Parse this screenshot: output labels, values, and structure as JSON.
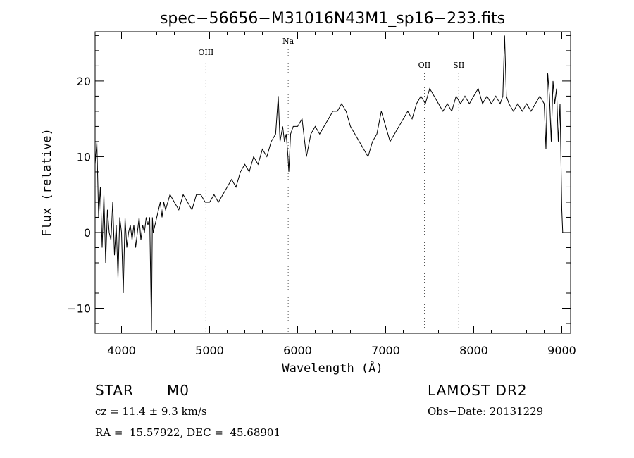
{
  "chart_data": {
    "type": "line",
    "title": "spec−56656−M31016N43M1_sp16−233.fits",
    "xlabel": "Wavelength (Å)",
    "ylabel": "Flux (relative)",
    "xlim": [
      3700,
      9100
    ],
    "ylim": [
      -13.3,
      26.5
    ],
    "xticks": [
      4000,
      5000,
      6000,
      7000,
      8000,
      9000
    ],
    "yticks": [
      -10,
      0,
      10,
      20
    ],
    "xtick_labels": [
      "4000",
      "5000",
      "6000",
      "7000",
      "8000",
      "9000"
    ],
    "ytick_labels": [
      "−10",
      "0",
      "10",
      "20"
    ],
    "grid": false,
    "line_color": "#000000",
    "series": [
      {
        "x": [
          3700,
          3720,
          3740,
          3760,
          3780,
          3800,
          3820,
          3840,
          3860,
          3880,
          3900,
          3920,
          3940,
          3960,
          3980,
          4000,
          4020,
          4040,
          4060,
          4080,
          4100,
          4120,
          4140,
          4160,
          4180,
          4200,
          4220,
          4240,
          4260,
          4280,
          4300,
          4320,
          4340,
          4350,
          4360,
          4380,
          4400,
          4420,
          4440,
          4460,
          4480,
          4500,
          4550,
          4600,
          4650,
          4700,
          4750,
          4800,
          4850,
          4900,
          4950,
          5000,
          5050,
          5100,
          5150,
          5200,
          5250,
          5300,
          5350,
          5400,
          5450,
          5500,
          5550,
          5600,
          5650,
          5700,
          5750,
          5780,
          5800,
          5830,
          5850,
          5870,
          5890,
          5900,
          5920,
          5950,
          6000,
          6050,
          6100,
          6150,
          6200,
          6250,
          6300,
          6350,
          6400,
          6450,
          6500,
          6550,
          6600,
          6650,
          6700,
          6750,
          6800,
          6850,
          6900,
          6950,
          7000,
          7050,
          7100,
          7150,
          7200,
          7250,
          7300,
          7350,
          7400,
          7450,
          7500,
          7550,
          7600,
          7650,
          7700,
          7750,
          7800,
          7850,
          7900,
          7950,
          8000,
          8050,
          8100,
          8150,
          8200,
          8250,
          8300,
          8330,
          8350,
          8370,
          8400,
          8450,
          8500,
          8550,
          8600,
          8650,
          8700,
          8750,
          8800,
          8820,
          8840,
          8860,
          8880,
          8900,
          8920,
          8940,
          8960,
          8980,
          9000,
          9010
        ],
        "y": [
          9,
          12,
          2,
          6,
          -2,
          5,
          -4,
          3,
          0,
          -1,
          4,
          -3,
          1,
          -6,
          2,
          0,
          -8,
          2,
          -2,
          0,
          1,
          -1,
          1,
          -2,
          0,
          2,
          -1,
          1,
          0,
          2,
          1,
          2,
          -13,
          2,
          0,
          1,
          2,
          3,
          4,
          2,
          4,
          3,
          5,
          4,
          3,
          5,
          4,
          3,
          5,
          5,
          4,
          4,
          5,
          4,
          5,
          6,
          7,
          6,
          8,
          9,
          8,
          10,
          9,
          11,
          10,
          12,
          13,
          18,
          12,
          14,
          12,
          13,
          10,
          8,
          13,
          14,
          14,
          15,
          10,
          13,
          14,
          13,
          14,
          15,
          16,
          16,
          17,
          16,
          14,
          13,
          12,
          11,
          10,
          12,
          13,
          16,
          14,
          12,
          13,
          14,
          15,
          16,
          15,
          17,
          18,
          17,
          19,
          18,
          17,
          16,
          17,
          16,
          18,
          17,
          18,
          17,
          18,
          19,
          17,
          18,
          17,
          18,
          17,
          18,
          26,
          18,
          17,
          16,
          17,
          16,
          17,
          16,
          17,
          18,
          17,
          11,
          21,
          18,
          12,
          20,
          17,
          19,
          12,
          17,
          3,
          0
        ]
      }
    ],
    "annotations": [
      {
        "label": "OIII",
        "x": 4959
      },
      {
        "label": "Na",
        "x": 5893
      },
      {
        "label": "OII",
        "x": 7440
      },
      {
        "label": "SII",
        "x": 7830
      }
    ]
  },
  "info": {
    "object_type": "STAR",
    "subclass": "M0",
    "survey": "LAMOST DR2",
    "cz": "cz = 11.4 ± 9.3 km/s",
    "obs_date": "Obs−Date: 20131229",
    "coords": "RA =  15.57922, DEC =  45.68901"
  }
}
